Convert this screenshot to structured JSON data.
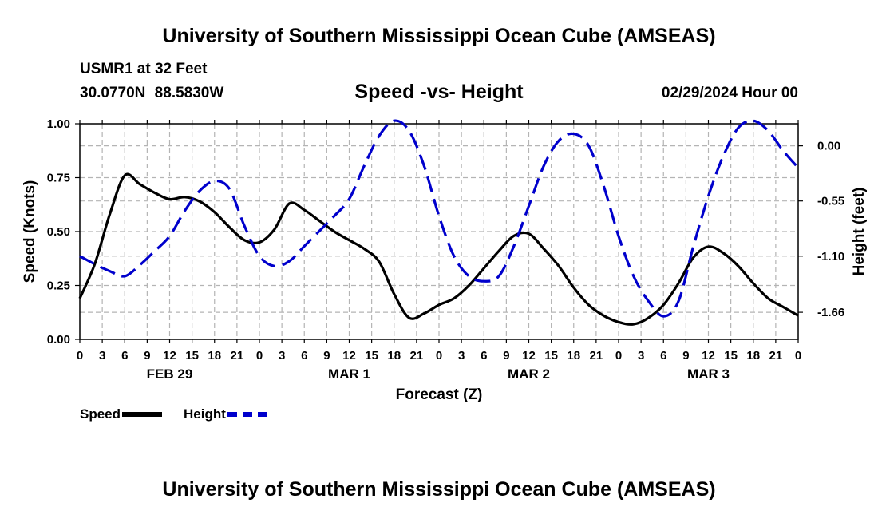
{
  "header": {
    "title": "University of Southern Mississippi Ocean Cube (AMSEAS)",
    "station": "USMR1 at 32 Feet",
    "coords": "30.0770N  88.5830W",
    "subtitle": "Speed -vs- Height",
    "datetime": "02/29/2024 Hour 00"
  },
  "footer": {
    "title": "University of Southern Mississippi Ocean Cube (AMSEAS)"
  },
  "legend": {
    "speed_label": "Speed",
    "height_label": "Height"
  },
  "colors": {
    "speed": "#000000",
    "height": "#0000cc",
    "grid": "#b4b4b4"
  },
  "chart_data": {
    "type": "line",
    "xlabel": "Forecast (Z)",
    "ylabel": "Speed (Knots)",
    "y2label": "Height (feet)",
    "xlim": [
      0,
      96
    ],
    "ylim": [
      0,
      1.0
    ],
    "y2lim": [
      -1.93,
      0.22
    ],
    "x_tick_step": 3,
    "x_tick_labels": [
      "0",
      "3",
      "6",
      "9",
      "12",
      "15",
      "18",
      "21",
      "0",
      "3",
      "6",
      "9",
      "12",
      "15",
      "18",
      "21",
      "0",
      "3",
      "6",
      "9",
      "12",
      "15",
      "18",
      "21",
      "0",
      "3",
      "6",
      "9",
      "12",
      "15",
      "18",
      "21",
      "0"
    ],
    "y_ticks": [
      "0.00",
      "0.25",
      "0.50",
      "0.75",
      "1.00"
    ],
    "y2_ticks": [
      "0.00",
      "-0.55",
      "-1.10",
      "-1.66"
    ],
    "day_labels": [
      {
        "x": 12,
        "label": "FEB 29"
      },
      {
        "x": 36,
        "label": "MAR 1"
      },
      {
        "x": 60,
        "label": "MAR 2"
      },
      {
        "x": 84,
        "label": "MAR 3"
      }
    ],
    "grid": true,
    "legend_position": "bottom-left",
    "series": [
      {
        "name": "Speed",
        "axis": "left",
        "style": "solid",
        "x": [
          0,
          2,
          4,
          6,
          8,
          10,
          12,
          14,
          16,
          18,
          20,
          22,
          24,
          26,
          28,
          30,
          32,
          34,
          36,
          38,
          40,
          42,
          44,
          46,
          48,
          50,
          52,
          54,
          56,
          58,
          60,
          62,
          64,
          66,
          68,
          70,
          72,
          74,
          76,
          78,
          80,
          82,
          84,
          86,
          88,
          90,
          92,
          94,
          96
        ],
        "values": [
          0.19,
          0.35,
          0.58,
          0.76,
          0.72,
          0.68,
          0.65,
          0.66,
          0.64,
          0.59,
          0.52,
          0.46,
          0.45,
          0.51,
          0.63,
          0.6,
          0.55,
          0.5,
          0.46,
          0.42,
          0.36,
          0.21,
          0.1,
          0.12,
          0.16,
          0.19,
          0.25,
          0.33,
          0.41,
          0.48,
          0.49,
          0.42,
          0.34,
          0.24,
          0.16,
          0.11,
          0.08,
          0.07,
          0.1,
          0.16,
          0.26,
          0.38,
          0.43,
          0.4,
          0.34,
          0.26,
          0.19,
          0.15,
          0.11
        ]
      },
      {
        "name": "Height",
        "axis": "right",
        "style": "dashed",
        "x": [
          0,
          2,
          4,
          6,
          8,
          10,
          12,
          14,
          16,
          18,
          20,
          22,
          24,
          26,
          28,
          30,
          32,
          34,
          36,
          38,
          40,
          42,
          44,
          46,
          48,
          50,
          52,
          54,
          56,
          58,
          60,
          62,
          64,
          66,
          68,
          70,
          72,
          74,
          76,
          78,
          80,
          82,
          84,
          86,
          88,
          90,
          92,
          94,
          96
        ],
        "values": [
          -1.1,
          -1.18,
          -1.25,
          -1.3,
          -1.19,
          -1.05,
          -0.9,
          -0.65,
          -0.45,
          -0.35,
          -0.43,
          -0.8,
          -1.1,
          -1.2,
          -1.15,
          -1.0,
          -0.85,
          -0.7,
          -0.53,
          -0.2,
          0.1,
          0.25,
          0.15,
          -0.2,
          -0.7,
          -1.1,
          -1.3,
          -1.35,
          -1.3,
          -1.0,
          -0.6,
          -0.2,
          0.05,
          0.12,
          0.0,
          -0.4,
          -0.9,
          -1.3,
          -1.55,
          -1.7,
          -1.55,
          -1.0,
          -0.5,
          -0.1,
          0.18,
          0.25,
          0.15,
          -0.05,
          -0.22
        ]
      }
    ]
  }
}
